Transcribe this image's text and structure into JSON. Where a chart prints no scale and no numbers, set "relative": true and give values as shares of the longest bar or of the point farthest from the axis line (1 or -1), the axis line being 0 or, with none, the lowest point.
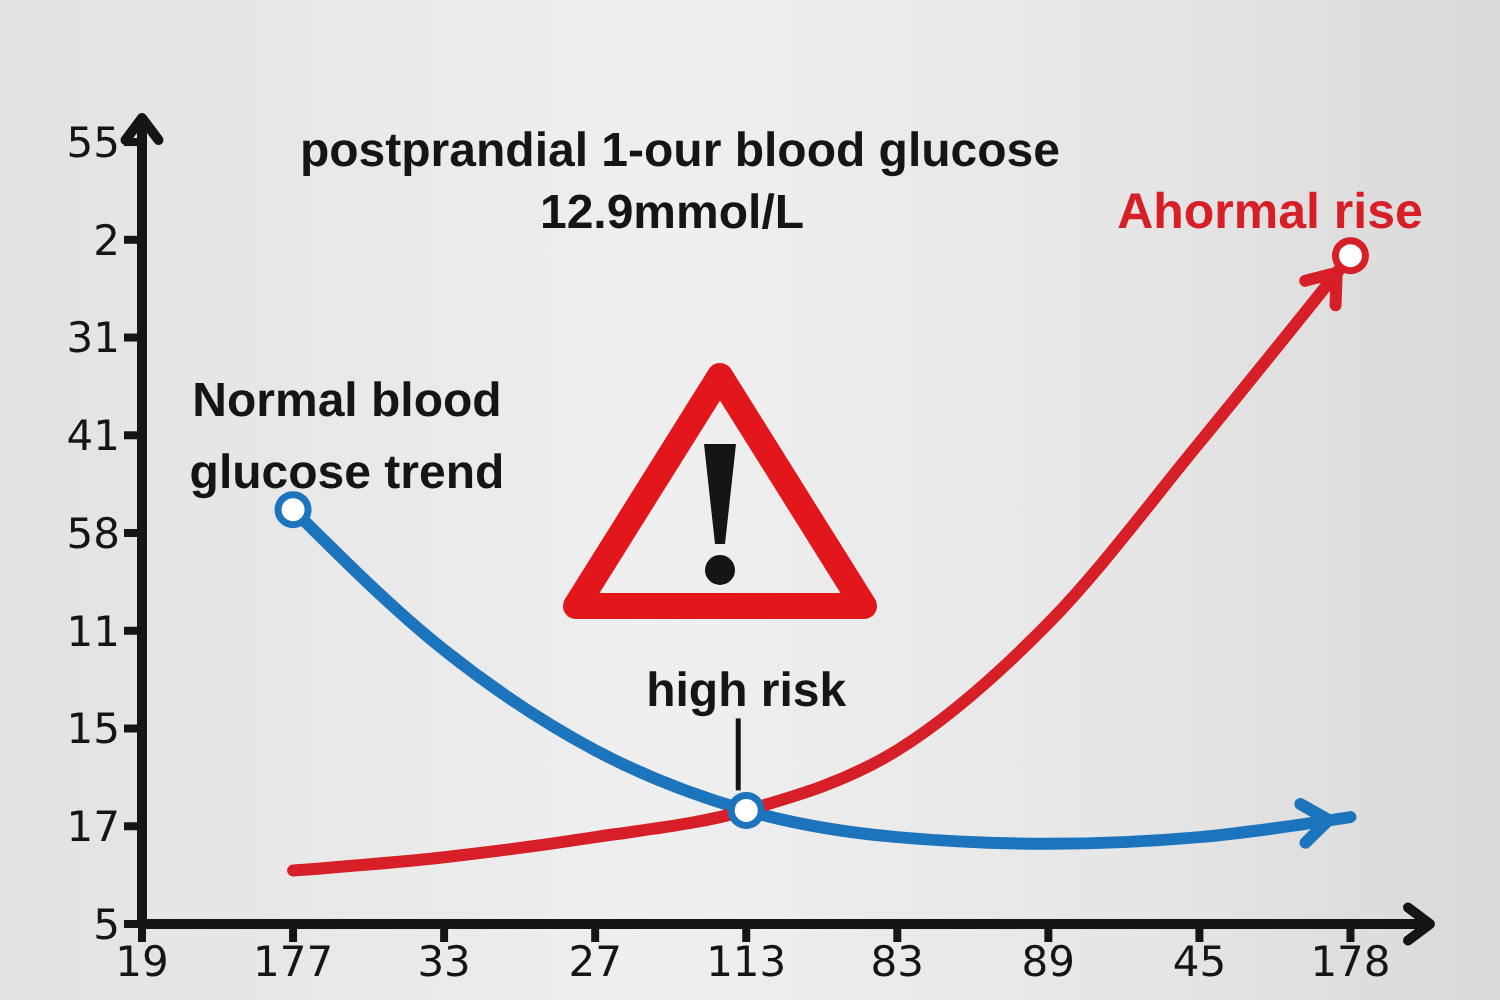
{
  "chart_data": {
    "type": "line",
    "relative": true,
    "title": "postprandial 1-our blood glucose",
    "subtitle": "12.9mmol/L",
    "categories": [
      "19",
      "177",
      "33",
      "27",
      "113",
      "83",
      "89",
      "45",
      "178"
    ],
    "y_categories": [
      "55",
      "2",
      "31",
      "41",
      "58",
      "11",
      "15",
      "17",
      "5"
    ],
    "series": [
      {
        "color": "#1c75bc",
        "values": [
          null,
          0.62,
          0.41,
          0.26,
          0.17,
          0.13,
          0.12,
          0.13,
          0.16
        ]
      },
      {
        "name": "Ahormal rise",
        "color": "#d61f26",
        "values": [
          null,
          0.08,
          0.1,
          0.13,
          0.17,
          0.26,
          0.45,
          0.72,
          1
        ]
      },
      {
        "type": "scatter",
        "marker": "circle",
        "values": [
          null,
          0.62,
          null,
          null,
          0.17,
          null,
          null,
          null,
          1
        ],
        "colors": [
          null,
          "#1c75bc",
          null,
          null,
          "#1c75bc",
          null,
          null,
          null,
          "#d61f26"
        ]
      }
    ],
    "annotations": [
      {
        "text": "Normal blood glucose trend",
        "x": "177",
        "y": 0.62
      },
      {
        "text": "high risk",
        "x": "113",
        "y": 0.17
      }
    ],
    "line_style": "solid"
  }
}
